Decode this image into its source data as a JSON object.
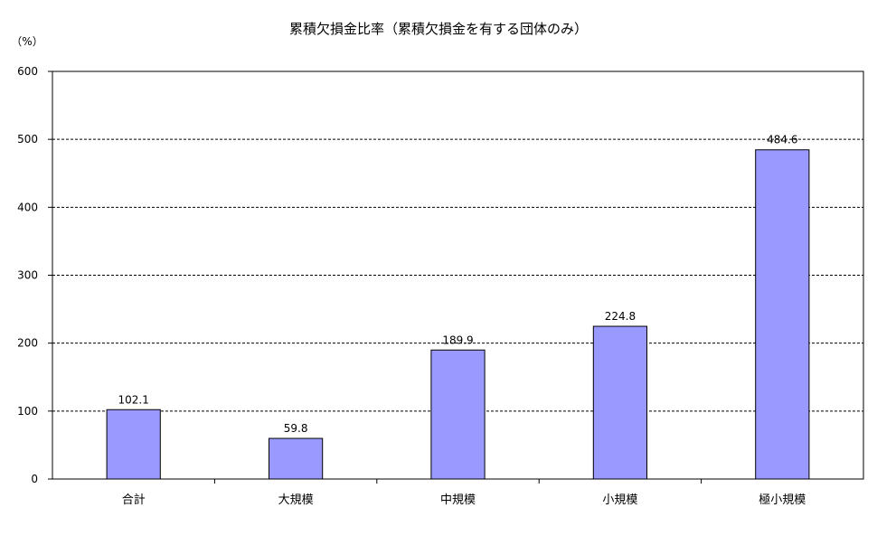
{
  "chart_data": {
    "type": "bar",
    "title": "累積欠損金比率（累積欠損金を有する団体のみ）",
    "ylabel": "（%）",
    "xlabel": "",
    "categories": [
      "合計",
      "大規模",
      "中規模",
      "小規模",
      "極小規模"
    ],
    "values": [
      102.1,
      59.8,
      189.9,
      224.8,
      484.6
    ],
    "value_labels": [
      "102.1",
      "59.8",
      "189.9",
      "224.8",
      "484.6"
    ],
    "ylim": [
      0,
      600
    ],
    "yticks": [
      0,
      100,
      200,
      300,
      400,
      500,
      600
    ],
    "ytick_labels": [
      "0",
      "100",
      "200",
      "300",
      "400",
      "500",
      "600"
    ],
    "grid": true,
    "grid_style": "dashed",
    "legend": "none",
    "bar_color": "#9999ff",
    "bar_edge_color": "#000000"
  }
}
